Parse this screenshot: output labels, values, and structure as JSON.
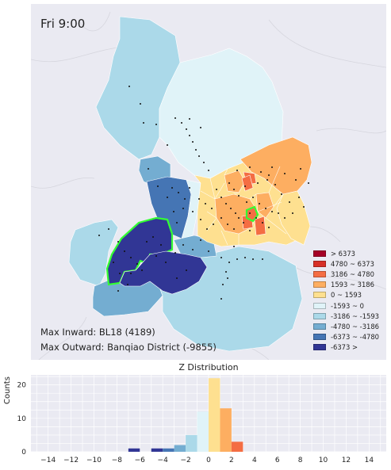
{
  "map": {
    "time_label": "Fri 9:00",
    "max_inward": "Max Inward: BL18 (4189)",
    "max_outward": "Max Outward: Banqiao District (-9855)",
    "colors": {
      "background": "#eaeaf2",
      "highlight_outline": "#33ff33",
      "station_dot": "#111111"
    }
  },
  "legend": {
    "items": [
      {
        "label": "> 6373",
        "color": "#a50026"
      },
      {
        "label": "4780 ~ 6373",
        "color": "#d73027"
      },
      {
        "label": "3186 ~ 4780",
        "color": "#f46d43"
      },
      {
        "label": "1593 ~ 3186",
        "color": "#fdae61"
      },
      {
        "label": "0 ~ 1593",
        "color": "#fee090"
      },
      {
        "label": "-1593 ~ 0",
        "color": "#e0f3f8"
      },
      {
        "label": "-3186 ~ -1593",
        "color": "#abd9e9"
      },
      {
        "label": "-4780 ~ -3186",
        "color": "#74add1"
      },
      {
        "label": "-6373 ~ -4780",
        "color": "#4575b4"
      },
      {
        "label": "-6373 >",
        "color": "#313695"
      }
    ]
  },
  "chart_data": {
    "type": "bar",
    "title": "Z Distribution",
    "xlabel": "",
    "ylabel": "Counts",
    "xlim": [
      -15.5,
      15.5
    ],
    "ylim": [
      0,
      23
    ],
    "xticks": [
      -14,
      -12,
      -10,
      -8,
      -6,
      -4,
      -2,
      0,
      2,
      4,
      6,
      8,
      10,
      12,
      14
    ],
    "yticks": [
      0,
      10,
      20
    ],
    "grid": true,
    "bins": [
      {
        "x0": -7,
        "x1": -6,
        "count": 1,
        "color": "#313695"
      },
      {
        "x0": -5,
        "x1": -4,
        "count": 1,
        "color": "#313695"
      },
      {
        "x0": -4,
        "x1": -3,
        "count": 1,
        "color": "#4575b4"
      },
      {
        "x0": -3,
        "x1": -2,
        "count": 2,
        "color": "#74add1"
      },
      {
        "x0": -2,
        "x1": -1,
        "count": 5,
        "color": "#abd9e9"
      },
      {
        "x0": -1,
        "x1": 0,
        "count": 12,
        "color": "#e0f3f8"
      },
      {
        "x0": 0,
        "x1": 1,
        "count": 22,
        "color": "#fee090"
      },
      {
        "x0": 1,
        "x1": 2,
        "count": 13,
        "color": "#fdae61"
      },
      {
        "x0": 2,
        "x1": 3,
        "count": 3,
        "color": "#f46d43"
      }
    ]
  }
}
